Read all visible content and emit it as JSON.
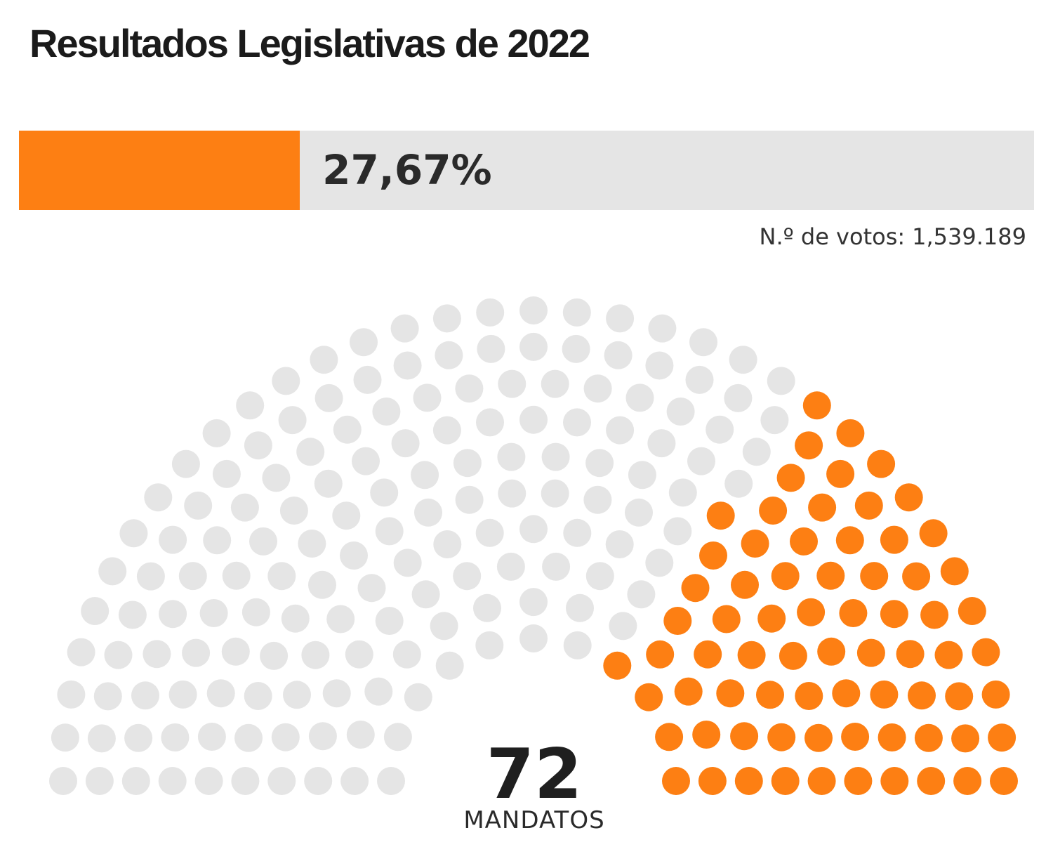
{
  "title": "Resultados Legislativas de 2022",
  "chart_data": {
    "type": "hemicycle",
    "title": "Resultados Legislativas de 2022",
    "vote_share_label": "27,67%",
    "vote_share": 27.67,
    "votes_label": "N.º de votos:",
    "votes_value": "1,539.189",
    "seats": 72,
    "seats_label": "MANDATOS",
    "total_seats": 230,
    "rows": 10,
    "highlight_color": "#fd7f13",
    "empty_color": "#e5e5e5"
  }
}
